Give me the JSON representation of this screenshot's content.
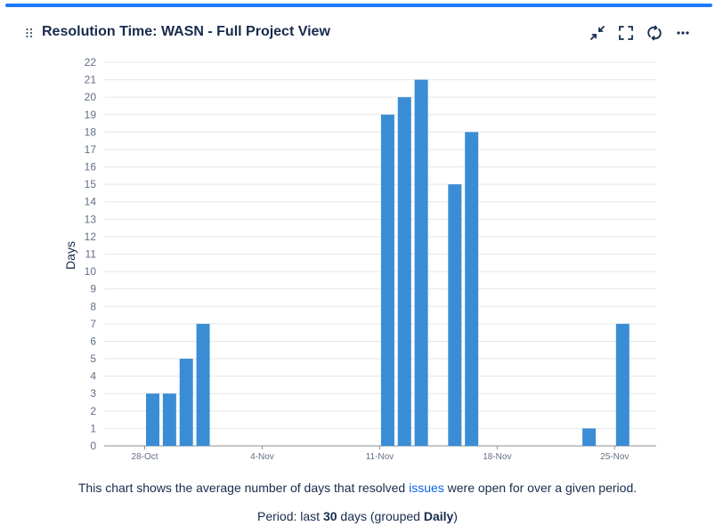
{
  "gadget": {
    "title": "Resolution Time: WASN - Full Project View",
    "icons": [
      "minimize-icon",
      "fullscreen-icon",
      "refresh-icon",
      "more-icon"
    ]
  },
  "description": {
    "before": "This chart shows the average number of days that resolved ",
    "link": "issues",
    "after": " were open for over a given period."
  },
  "period": {
    "prefix": "Period: last ",
    "days": "30",
    "middle": " days (grouped ",
    "grouping": "Daily",
    "suffix": ")"
  },
  "chart_data": {
    "type": "bar",
    "ylabel": "Days",
    "ylim": [
      0,
      22
    ],
    "grid": true,
    "bar_color": "#3a8dd4",
    "x_dates": [
      "28-Oct",
      "29-Oct",
      "30-Oct",
      "31-Oct",
      "1-Nov",
      "2-Nov",
      "3-Nov",
      "4-Nov",
      "5-Nov",
      "6-Nov",
      "7-Nov",
      "8-Nov",
      "9-Nov",
      "10-Nov",
      "11-Nov",
      "12-Nov",
      "13-Nov",
      "14-Nov",
      "15-Nov",
      "16-Nov",
      "17-Nov",
      "18-Nov",
      "19-Nov",
      "20-Nov",
      "21-Nov",
      "22-Nov",
      "23-Nov",
      "24-Nov",
      "25-Nov",
      "26-Nov"
    ],
    "values": [
      3,
      3,
      5,
      7,
      0,
      0,
      0,
      0,
      0,
      0,
      0,
      0,
      0,
      0,
      19,
      20,
      21,
      0,
      15,
      18,
      0,
      0,
      0,
      0,
      0,
      0,
      1,
      0,
      7,
      0
    ],
    "xtick_labels": [
      "28-Oct",
      "4-Nov",
      "11-Nov",
      "18-Nov",
      "25-Nov"
    ],
    "yticks": [
      0,
      1,
      2,
      3,
      4,
      5,
      6,
      7,
      8,
      9,
      10,
      11,
      12,
      13,
      14,
      15,
      16,
      17,
      18,
      19,
      20,
      21,
      22
    ]
  }
}
